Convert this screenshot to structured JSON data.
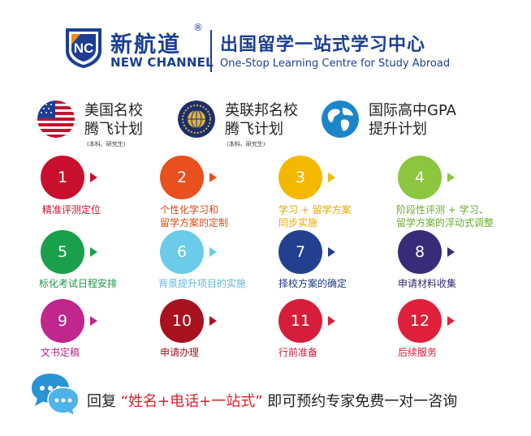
{
  "header": {
    "logo_letters": "NC",
    "brand_cn": "新航道",
    "brand_reg": "®",
    "brand_en": "NEW CHANNEL",
    "slogan_cn": "出国留学一站式学习中心",
    "slogan_en": "One-Stop Learning Centre for Study Abroad"
  },
  "programs": [
    {
      "icon": "us-flag-icon",
      "line1": "美国名校",
      "line2": "腾飞计划",
      "note": "(本科、研究生)"
    },
    {
      "icon": "commonwealth-emblem-icon",
      "line1": "英联邦名校",
      "line2": "腾飞计划",
      "note": "(本科、研究生)"
    },
    {
      "icon": "globe-icon",
      "line1": "国际高中GPA",
      "line2": "提升计划",
      "note": ""
    }
  ],
  "steps": [
    {
      "number": "1",
      "label1": "精准评测定位",
      "label2": "",
      "color": "#c8102e",
      "label_color": "#c8102e"
    },
    {
      "number": "2",
      "label1": "个性化学习和",
      "label2": "留学方案的定制",
      "color": "#e8501e",
      "label_color": "#d94b1a"
    },
    {
      "number": "3",
      "label1": "学习 + 留学方案",
      "label2": "同步实施",
      "color": "#f5b800",
      "label_color": "#e6a800"
    },
    {
      "number": "4",
      "label1": "阶段性评测 + 学习、",
      "label2": "留学方案的浮动式调整",
      "color": "#8cc63f",
      "label_color": "#6aad2c"
    },
    {
      "number": "5",
      "label1": "标化考试日程安排",
      "label2": "",
      "color": "#1aa04a",
      "label_color": "#1a9a46"
    },
    {
      "number": "6",
      "label1": "背景提升项目的实施",
      "label2": "",
      "color": "#6ccbe8",
      "label_color": "#5fb8d8"
    },
    {
      "number": "7",
      "label1": "择校方案的确定",
      "label2": "",
      "color": "#23408f",
      "label_color": "#1f3a85"
    },
    {
      "number": "8",
      "label1": "申请材料收集",
      "label2": "",
      "color": "#3a2a7a",
      "label_color": "#33276f"
    },
    {
      "number": "9",
      "label1": "文书定稿",
      "label2": "",
      "color": "#c0268c",
      "label_color": "#b52185"
    },
    {
      "number": "10",
      "label1": "申请办理",
      "label2": "",
      "color": "#a8121f",
      "label_color": "#9e1420"
    },
    {
      "number": "11",
      "label1": "行前准备",
      "label2": "",
      "color": "#d61e3c",
      "label_color": "#cc1b38"
    },
    {
      "number": "12",
      "label1": "后续服务",
      "label2": "",
      "color": "#e0203a",
      "label_color": "#d41d36"
    }
  ],
  "footer": {
    "prefix": "回复",
    "quote": "“姓名+电话+一站式”",
    "suffix": "即可预约专家免费一对一咨询",
    "icon": "chat-bubbles-icon"
  }
}
